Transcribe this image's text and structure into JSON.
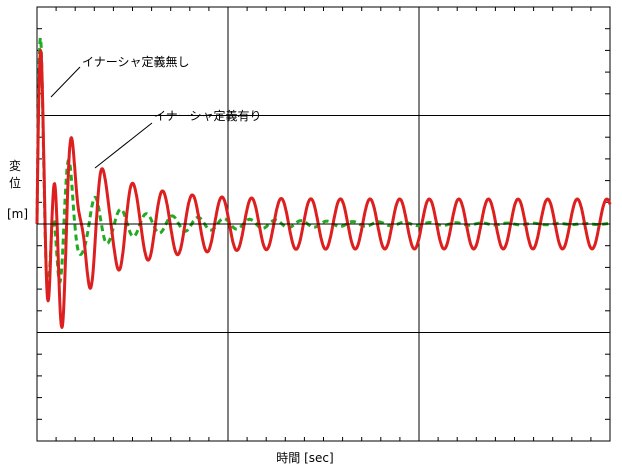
{
  "chart_data": {
    "type": "line",
    "title": "",
    "xlabel": "時間 [sec]",
    "ylabel_chars": [
      "変",
      "位"
    ],
    "ylabel_unit": "[m]",
    "grid": true,
    "x_major_ticks": 3,
    "x_minor_per_major": 10,
    "y_major_ticks": 4,
    "y_minor_per_major": 5,
    "xlim": [
      0,
      30
    ],
    "ylim": [
      -2,
      2
    ],
    "series": [
      {
        "name": "イナーシャ定義無し",
        "color": "#22aa22",
        "style": "dashed",
        "amplitude": 2.05,
        "decay_fast": 0.85,
        "decay_slow": 0.12,
        "period": 1.35
      },
      {
        "name": "イナーシャ定義有り",
        "color": "#dd1f1f",
        "style": "solid",
        "amplitude": 1.55,
        "decay_fast": 0.45,
        "floor_amplitude": 0.23,
        "period": 1.55
      }
    ],
    "annotations": [
      {
        "text": "イナーシャ定義無し",
        "series": 0
      },
      {
        "text": "イナーシャ定義有り",
        "series": 1
      }
    ]
  }
}
